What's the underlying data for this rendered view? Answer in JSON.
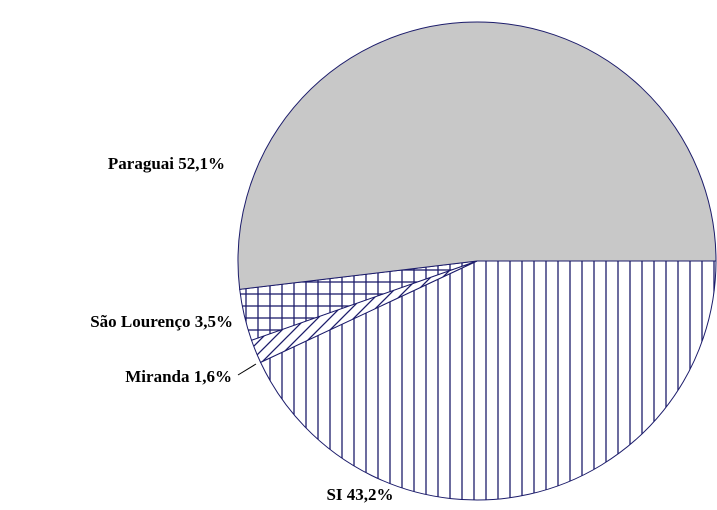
{
  "chart_data": {
    "type": "pie",
    "categories": [
      "SI",
      "Miranda",
      "São Lourenço",
      "Paraguai"
    ],
    "values": [
      43.2,
      1.6,
      3.5,
      52.1
    ],
    "value_labels": [
      "43,2%",
      "1,6%",
      "3,5%",
      "52,1%"
    ],
    "patterns": [
      "vertical",
      "diagonal",
      "crosshatch",
      "solid"
    ],
    "colors": [
      "#1c1c6b",
      "#1c1c6b",
      "#1c1c6b",
      "#c8c8c8"
    ]
  }
}
